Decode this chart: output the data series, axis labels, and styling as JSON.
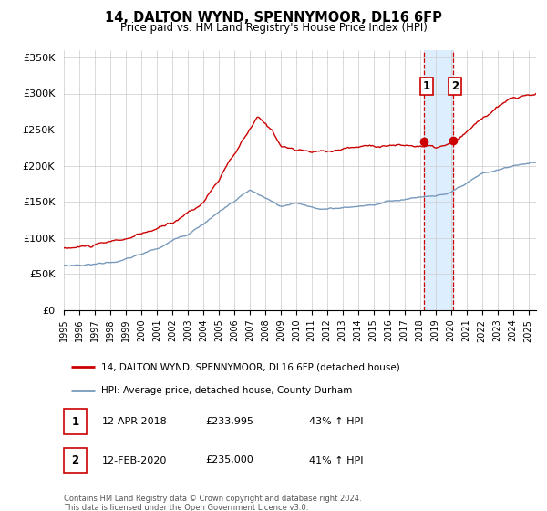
{
  "title": "14, DALTON WYND, SPENNYMOOR, DL16 6FP",
  "subtitle": "Price paid vs. HM Land Registry's House Price Index (HPI)",
  "legend_line1": "14, DALTON WYND, SPENNYMOOR, DL16 6FP (detached house)",
  "legend_line2": "HPI: Average price, detached house, County Durham",
  "table": [
    {
      "num": "1",
      "date": "12-APR-2018",
      "price": "£233,995",
      "hpi": "43% ↑ HPI"
    },
    {
      "num": "2",
      "date": "12-FEB-2020",
      "price": "£235,000",
      "hpi": "41% ↑ HPI"
    }
  ],
  "footnote": "Contains HM Land Registry data © Crown copyright and database right 2024.\nThis data is licensed under the Open Government Licence v3.0.",
  "ylim": [
    0,
    360000
  ],
  "yticks": [
    0,
    50000,
    100000,
    150000,
    200000,
    250000,
    300000,
    350000
  ],
  "ytick_labels": [
    "£0",
    "£50K",
    "£100K",
    "£150K",
    "£200K",
    "£250K",
    "£300K",
    "£350K"
  ],
  "sale1_year": 2018.28,
  "sale1_price": 233995,
  "sale2_year": 2020.12,
  "sale2_price": 235000,
  "red_color": "#cc0000",
  "blue_color": "#7799bb",
  "highlight_color": "#ddeeff",
  "xlim_left": 1995,
  "xlim_right": 2025.5
}
